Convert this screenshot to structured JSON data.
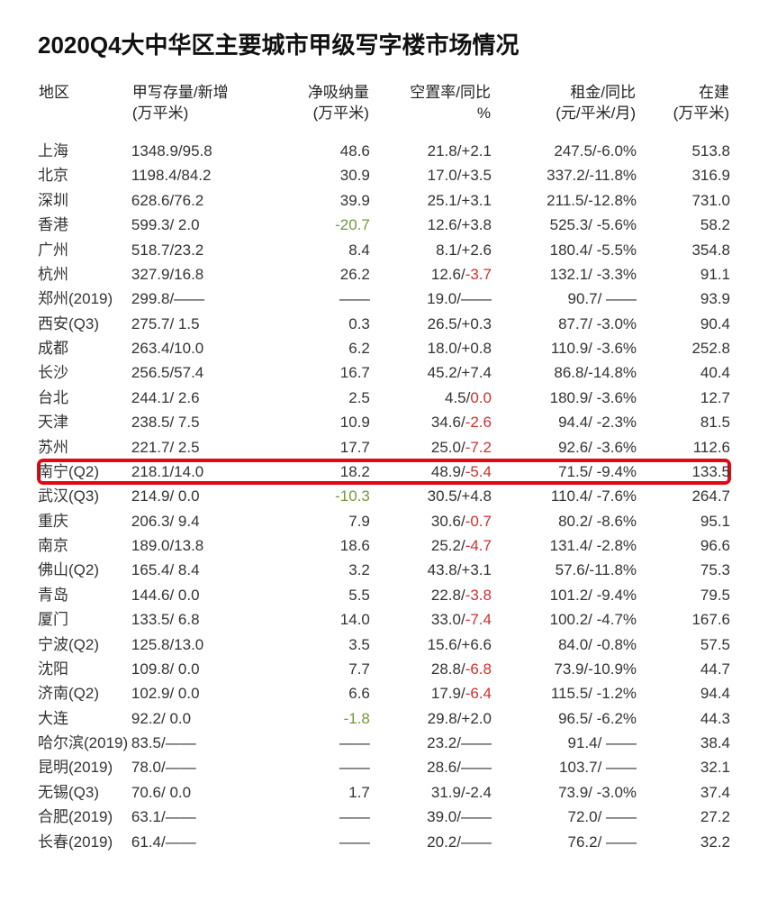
{
  "title": "2020Q4大中华区主要城市甲级写字楼市场情况",
  "columns": [
    {
      "h1": "地区",
      "h2": ""
    },
    {
      "h1": "甲写存量/新增",
      "h2": "(万平米)"
    },
    {
      "h1": "净吸纳量",
      "h2": "(万平米)"
    },
    {
      "h1": "空置率/同比",
      "h2": "%"
    },
    {
      "h1": "租金/同比",
      "h2": "(元/平米/月)"
    },
    {
      "h1": "在建",
      "h2": "(万平米)"
    }
  ],
  "highlight_row_index": 13,
  "colors": {
    "text": "#333333",
    "title": "#111111",
    "highlight_border": "#e30613",
    "negative_red": "#d12e2e",
    "positive_green": "#6f9a3c",
    "background": "#ffffff"
  },
  "rows": [
    {
      "region": "上海",
      "stock": "1348.9/95.8",
      "absorb": "48.6",
      "vac_a": "21.8/",
      "vac_b": "+2.1",
      "rent": "247.5/-6.0%",
      "uc": "513.8"
    },
    {
      "region": "北京",
      "stock": "1198.4/84.2",
      "absorb": "30.9",
      "vac_a": "17.0/",
      "vac_b": "+3.5",
      "rent": "337.2/-11.8%",
      "uc": "316.9"
    },
    {
      "region": "深圳",
      "stock": "628.6/76.2",
      "absorb": "39.9",
      "vac_a": "25.1/",
      "vac_b": "+3.1",
      "rent": "211.5/-12.8%",
      "uc": "731.0"
    },
    {
      "region": "香港",
      "stock": "599.3/ 2.0",
      "absorb": "-20.7",
      "absorb_class": "grn",
      "vac_a": "12.6/",
      "vac_b": "+3.8",
      "rent": "525.3/ -5.6%",
      "uc": "58.2"
    },
    {
      "region": "广州",
      "stock": "518.7/23.2",
      "absorb": "8.4",
      "vac_a": "8.1/",
      "vac_b": "+2.6",
      "rent": "180.4/ -5.5%",
      "uc": "354.8"
    },
    {
      "region": "杭州",
      "stock": "327.9/16.8",
      "absorb": "26.2",
      "vac_a": "12.6/",
      "vac_b": "-3.7",
      "vac_b_class": "neg",
      "rent": "132.1/ -3.3%",
      "uc": "91.1"
    },
    {
      "region": "郑州(2019)",
      "stock": "299.8/——",
      "absorb": "——",
      "vac_a": "19.0/",
      "vac_b": "——",
      "rent": "90.7/  ——",
      "uc": "93.9"
    },
    {
      "region": "西安(Q3)",
      "stock": "275.7/ 1.5",
      "absorb": "0.3",
      "vac_a": "26.5/",
      "vac_b": "+0.3",
      "rent": "87.7/ -3.0%",
      "uc": "90.4"
    },
    {
      "region": "成都",
      "stock": "263.4/10.0",
      "absorb": "6.2",
      "vac_a": "18.0/",
      "vac_b": "+0.8",
      "rent": "110.9/ -3.6%",
      "uc": "252.8"
    },
    {
      "region": "长沙",
      "stock": "256.5/57.4",
      "absorb": "16.7",
      "vac_a": "45.2/",
      "vac_b": "+7.4",
      "rent": "86.8/-14.8%",
      "uc": "40.4"
    },
    {
      "region": "台北",
      "stock": "244.1/ 2.6",
      "absorb": "2.5",
      "vac_a": "4.5/",
      "vac_b": "0.0",
      "vac_b_class": "neg",
      "rent": "180.9/ -3.6%",
      "uc": "12.7"
    },
    {
      "region": "天津",
      "stock": "238.5/ 7.5",
      "absorb": "10.9",
      "vac_a": "34.6/",
      "vac_b": "-2.6",
      "vac_b_class": "neg",
      "rent": "94.4/ -2.3%",
      "uc": "81.5"
    },
    {
      "region": "苏州",
      "stock": "221.7/ 2.5",
      "absorb": "17.7",
      "vac_a": "25.0/",
      "vac_b": "-7.2",
      "vac_b_class": "neg",
      "rent": "92.6/ -3.6%",
      "uc": "112.6"
    },
    {
      "region": "南宁(Q2)",
      "stock": "218.1/14.0",
      "absorb": "18.2",
      "vac_a": "48.9/",
      "vac_b": "-5.4",
      "vac_b_class": "neg",
      "rent": "71.5/ -9.4%",
      "uc": "133.5"
    },
    {
      "region": "武汉(Q3)",
      "stock": "214.9/ 0.0",
      "absorb": "-10.3",
      "absorb_class": "grn",
      "vac_a": "30.5/",
      "vac_b": "+4.8",
      "rent": "110.4/ -7.6%",
      "uc": "264.7"
    },
    {
      "region": "重庆",
      "stock": "206.3/ 9.4",
      "absorb": "7.9",
      "vac_a": "30.6/",
      "vac_b": "-0.7",
      "vac_b_class": "neg",
      "rent": "80.2/ -8.6%",
      "uc": "95.1"
    },
    {
      "region": "南京",
      "stock": "189.0/13.8",
      "absorb": "18.6",
      "vac_a": "25.2/",
      "vac_b": "-4.7",
      "vac_b_class": "neg",
      "rent": "131.4/ -2.8%",
      "uc": "96.6"
    },
    {
      "region": "佛山(Q2)",
      "stock": "165.4/ 8.4",
      "absorb": "3.2",
      "vac_a": "43.8/",
      "vac_b": "+3.1",
      "rent": "57.6/-11.8%",
      "uc": "75.3"
    },
    {
      "region": "青岛",
      "stock": "144.6/ 0.0",
      "absorb": "5.5",
      "vac_a": "22.8/",
      "vac_b": "-3.8",
      "vac_b_class": "neg",
      "rent": "101.2/ -9.4%",
      "uc": "79.5"
    },
    {
      "region": "厦门",
      "stock": "133.5/ 6.8",
      "absorb": "14.0",
      "vac_a": "33.0/",
      "vac_b": "-7.4",
      "vac_b_class": "neg",
      "rent": "100.2/ -4.7%",
      "uc": "167.6"
    },
    {
      "region": "宁波(Q2)",
      "stock": "125.8/13.0",
      "absorb": "3.5",
      "vac_a": "15.6/",
      "vac_b": "+6.6",
      "rent": "84.0/ -0.8%",
      "uc": "57.5"
    },
    {
      "region": "沈阳",
      "stock": "109.8/ 0.0",
      "absorb": "7.7",
      "vac_a": "28.8/",
      "vac_b": "-6.8",
      "vac_b_class": "neg",
      "rent": "73.9/-10.9%",
      "uc": "44.7"
    },
    {
      "region": "济南(Q2)",
      "stock": "102.9/ 0.0",
      "absorb": "6.6",
      "vac_a": "17.9/",
      "vac_b": "-6.4",
      "vac_b_class": "neg",
      "rent": "115.5/ -1.2%",
      "uc": "94.4"
    },
    {
      "region": "大连",
      "stock": "92.2/ 0.0",
      "absorb": "-1.8",
      "absorb_class": "grn",
      "vac_a": "29.8/",
      "vac_b": "+2.0",
      "rent": "96.5/ -6.2%",
      "uc": "44.3"
    },
    {
      "region": "哈尔滨(2019)",
      "stock": "83.5/——",
      "absorb": "——",
      "vac_a": "23.2/",
      "vac_b": "——",
      "rent": "91.4/  ——",
      "uc": "38.4"
    },
    {
      "region": "昆明(2019)",
      "stock": "78.0/——",
      "absorb": "——",
      "vac_a": "28.6/",
      "vac_b": "——",
      "rent": "103.7/  ——",
      "uc": "32.1"
    },
    {
      "region": "无锡(Q3)",
      "stock": "70.6/ 0.0",
      "absorb": "1.7",
      "vac_a": "31.9/",
      "vac_b": "-2.4",
      "rent": "73.9/ -3.0%",
      "uc": "37.4"
    },
    {
      "region": "合肥(2019)",
      "stock": "63.1/——",
      "absorb": "——",
      "vac_a": "39.0/",
      "vac_b": "——",
      "rent": "72.0/  ——",
      "uc": "27.2"
    },
    {
      "region": "长春(2019)",
      "stock": "61.4/——",
      "absorb": "——",
      "vac_a": "20.2/",
      "vac_b": "——",
      "rent": "76.2/  ——",
      "uc": "32.2"
    }
  ]
}
